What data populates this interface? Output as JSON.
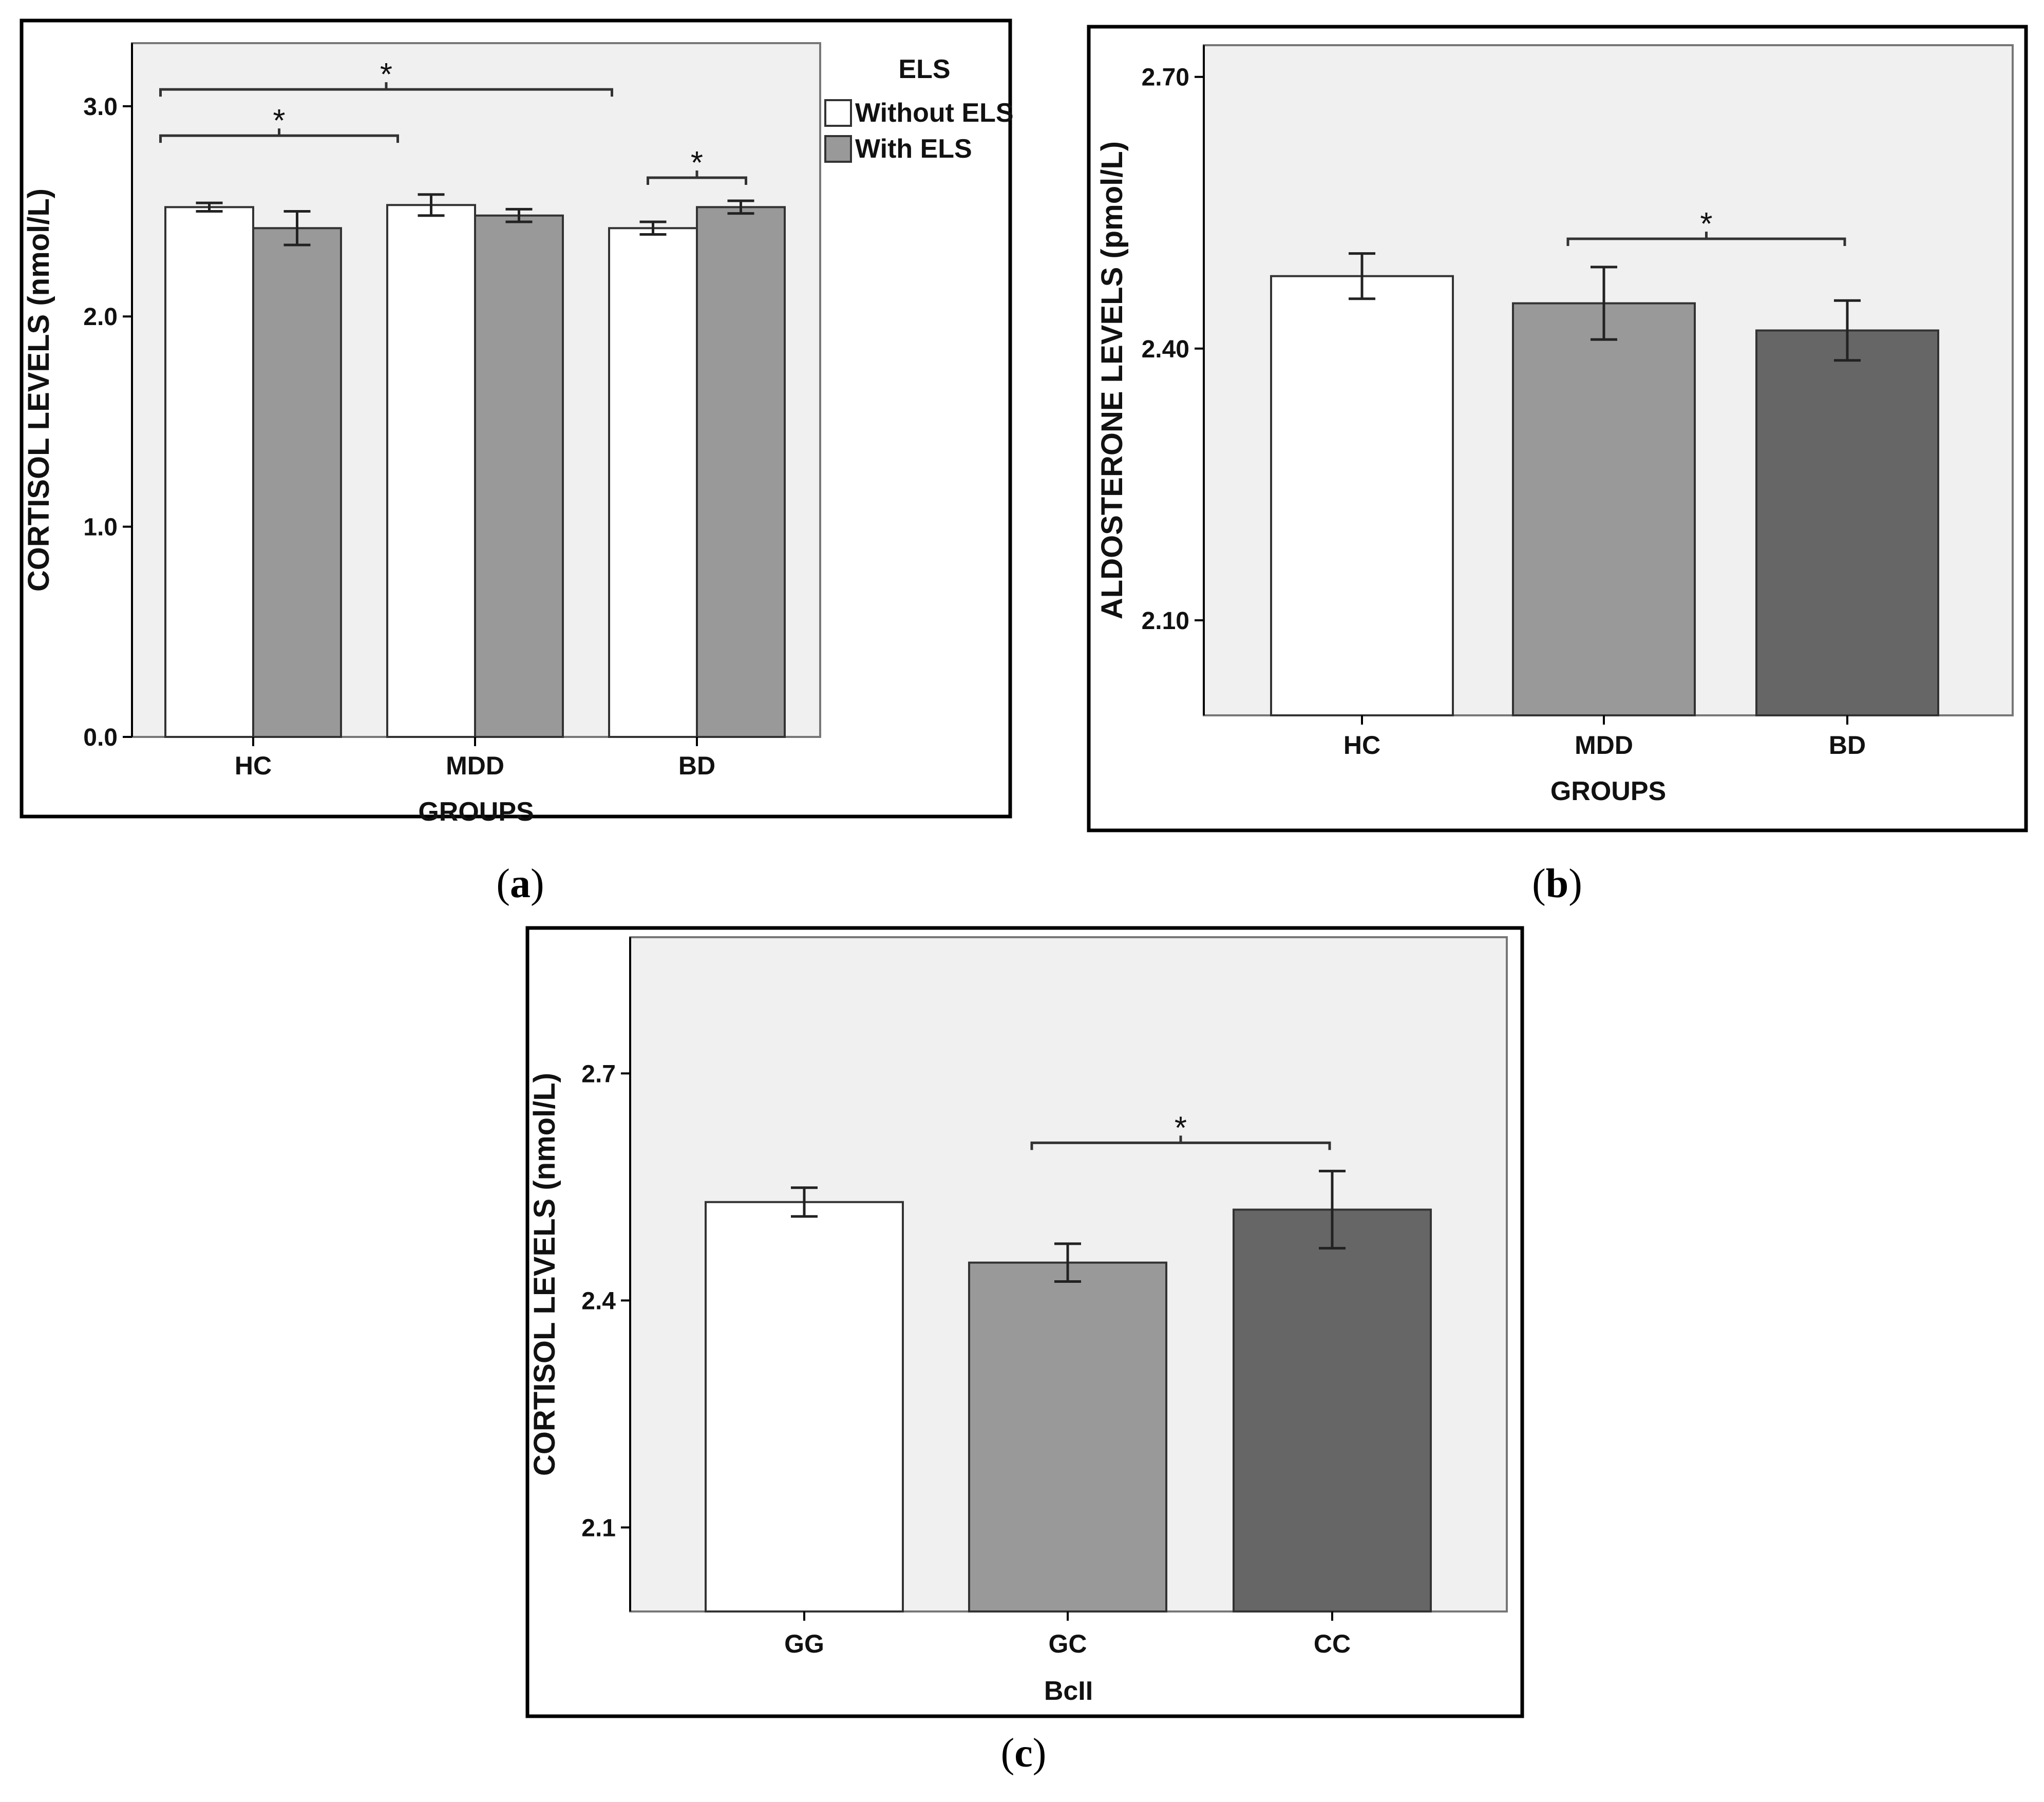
{
  "chart_data": [
    {
      "type": "bar",
      "panel": "a",
      "caption_letter": "a",
      "categories": [
        "HC",
        "MDD",
        "BD"
      ],
      "series": [
        {
          "name": "Without ELS",
          "color": "#ffffff",
          "values": [
            2.52,
            2.53,
            2.42
          ],
          "err": [
            0.02,
            0.05,
            0.03
          ]
        },
        {
          "name": "With ELS",
          "color": "#999999",
          "values": [
            2.42,
            2.48,
            2.52
          ],
          "err": [
            0.08,
            0.03,
            0.03
          ]
        }
      ],
      "legend_title": "ELS",
      "xlabel": "GROUPS",
      "ylabel": "CORTISOL LEVELS (nmol/L)",
      "yticks": [
        0.0,
        1.0,
        2.0,
        3.0
      ],
      "ytick_labels": [
        "0.0",
        "1.0",
        "2.0",
        "3.0"
      ],
      "ylim": [
        0.0,
        3.3
      ],
      "significance": [
        {
          "from": [
            0,
            0
          ],
          "to": [
            2,
            0
          ],
          "label": "*"
        },
        {
          "from": [
            0,
            0
          ],
          "to": [
            1,
            0
          ],
          "label": "*"
        },
        {
          "from": [
            2,
            0
          ],
          "to": [
            2,
            1
          ],
          "label": "*"
        }
      ]
    },
    {
      "type": "bar",
      "panel": "b",
      "caption_letter": "b",
      "categories": [
        "HC",
        "MDD",
        "BD"
      ],
      "values": [
        2.48,
        2.45,
        2.42
      ],
      "err": [
        0.025,
        0.04,
        0.033
      ],
      "colors": [
        "#ffffff",
        "#999999",
        "#666666"
      ],
      "xlabel": "GROUPS",
      "ylabel": "ALDOSTERONE LEVELS (pmol/L)",
      "yticks": [
        2.1,
        2.4,
        2.7
      ],
      "ytick_labels": [
        "2.10",
        "2.40",
        "2.70"
      ],
      "ylim": [
        1.995,
        2.735
      ],
      "significance": [
        {
          "from": 1,
          "to": 2,
          "label": "*"
        }
      ]
    },
    {
      "type": "bar",
      "panel": "c",
      "caption_letter": "c",
      "categories": [
        "GG",
        "GC",
        "CC"
      ],
      "values": [
        2.53,
        2.45,
        2.52
      ],
      "err": [
        0.019,
        0.025,
        0.051
      ],
      "colors": [
        "#ffffff",
        "#999999",
        "#666666"
      ],
      "xlabel": "BcII",
      "ylabel": "CORTISOL LEVELS (nmol/L)",
      "yticks": [
        2.1,
        2.4,
        2.7
      ],
      "ytick_labels": [
        "2.1",
        "2.4",
        "2.7"
      ],
      "ylim": [
        1.989,
        2.88
      ],
      "significance": [
        {
          "from": 1,
          "to": 2,
          "label": "*"
        }
      ]
    }
  ]
}
